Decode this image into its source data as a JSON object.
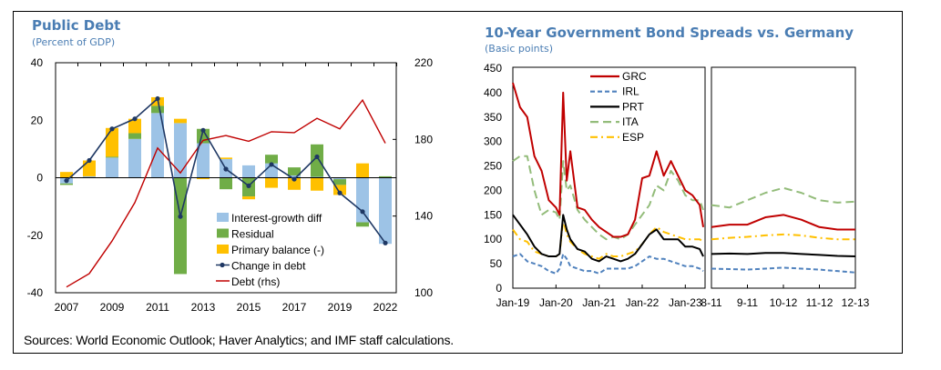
{
  "source": "Sources: World Economic Outlook; Haver Analytics; and IMF  staff calculations.",
  "chart_data": [
    {
      "type": "bar",
      "stacked": true,
      "title": "Public Debt",
      "subtitle": "(Percent of GDP)",
      "categories": [
        "2007",
        "2008",
        "2009",
        "2010",
        "2011",
        "2012",
        "2013",
        "2014",
        "2015",
        "2016",
        "2017",
        "2018",
        "2019",
        "2020",
        "2022"
      ],
      "tick_labels": [
        "2007",
        "",
        "2009",
        "",
        "2011",
        "",
        "2013",
        "",
        "2015",
        "",
        "2017",
        "",
        "2019",
        "",
        "2022"
      ],
      "ylim": [
        -40,
        40
      ],
      "yticks": [
        -40,
        -20,
        0,
        20,
        40
      ],
      "y2lim": [
        100,
        220
      ],
      "y2ticks": [
        100,
        140,
        180,
        220
      ],
      "legend_position": "bottom-center",
      "series": [
        {
          "name": "Interest-growth diff",
          "kind": "bar",
          "color": "#9dc3e6",
          "values": [
            -2,
            0.5,
            7,
            13.5,
            22.5,
            19,
            12,
            6.5,
            4.3,
            5,
            0.8,
            0.3,
            -0.5,
            -15.5,
            -23
          ]
        },
        {
          "name": "Residual",
          "kind": "bar",
          "color": "#70ad47",
          "values": [
            -0.5,
            0,
            0.3,
            2,
            2.5,
            -33.5,
            5,
            -4,
            -6.5,
            3,
            2.8,
            11.3,
            -2,
            -1.5,
            0.5
          ]
        },
        {
          "name": "Primary balance (-)",
          "kind": "bar",
          "color": "#ffc000",
          "values": [
            2,
            5.5,
            10,
            5,
            3,
            1.5,
            -0.5,
            0.5,
            -1,
            -3.5,
            -4.2,
            -4.5,
            -3.5,
            5,
            0
          ]
        },
        {
          "name": "Change in debt",
          "kind": "line-marker",
          "color": "#1f3864",
          "values": [
            -1,
            6,
            17,
            20.5,
            27.5,
            -13.5,
            16.5,
            3,
            -2.8,
            4.6,
            -0.5,
            7.3,
            -5.3,
            -11.8,
            -22.7
          ]
        },
        {
          "name": "Debt (rhs)",
          "kind": "line",
          "axis": "right",
          "color": "#c00000",
          "values": [
            103,
            110,
            127,
            147,
            175.5,
            162.5,
            179.5,
            182,
            179,
            184,
            183.5,
            191,
            185.5,
            200.5,
            178
          ]
        }
      ]
    },
    {
      "type": "line",
      "title": "10-Year Government Bond Spreads vs. Germany",
      "subtitle": "(Basic points)",
      "ylim": [
        0,
        450
      ],
      "yticks": [
        0,
        50,
        100,
        150,
        200,
        250,
        300,
        350,
        400,
        450
      ],
      "legend_position": "top-left",
      "panels": [
        {
          "x_ticks": [
            "Jan-19",
            "Jan-20",
            "Jan-21",
            "Jan-22",
            "Jan-23"
          ],
          "x_tick_months": [
            0,
            12,
            24,
            36,
            48
          ],
          "x_range_months": [
            0,
            53.5
          ],
          "x": [
            0,
            2,
            4,
            6,
            8,
            10,
            12,
            13,
            14,
            15,
            16,
            18,
            20,
            22,
            24,
            26,
            28,
            30,
            32,
            34,
            36,
            38,
            40,
            42,
            44,
            46,
            48,
            50,
            52,
            53
          ]
        },
        {
          "x_ticks": [
            "8-11",
            "9-11",
            "10-12",
            "11-12",
            "12-13"
          ],
          "x": [
            0,
            0.5,
            1,
            1.5,
            2,
            2.5,
            3,
            3.5,
            4
          ]
        }
      ],
      "series": [
        {
          "name": "GRC",
          "color": "#c00000",
          "dash": "solid",
          "panel1": [
            420,
            370,
            350,
            270,
            240,
            180,
            165,
            150,
            400,
            220,
            280,
            165,
            160,
            140,
            125,
            115,
            105,
            105,
            110,
            140,
            225,
            230,
            280,
            230,
            260,
            230,
            200,
            190,
            170,
            125
          ],
          "panel2": [
            125,
            130,
            130,
            145,
            150,
            140,
            125,
            120,
            120
          ]
        },
        {
          "name": "IRL",
          "color": "#4f81bd",
          "dash": "dashed",
          "panel1": [
            65,
            70,
            55,
            50,
            45,
            35,
            30,
            40,
            70,
            60,
            45,
            40,
            35,
            35,
            30,
            40,
            40,
            40,
            40,
            45,
            55,
            65,
            60,
            60,
            55,
            50,
            45,
            45,
            40,
            35
          ],
          "panel2": [
            40,
            39,
            38,
            40,
            42,
            40,
            38,
            35,
            32
          ]
        },
        {
          "name": "PRT",
          "color": "#000000",
          "dash": "solid",
          "panel1": [
            150,
            130,
            110,
            85,
            70,
            65,
            65,
            70,
            150,
            120,
            100,
            80,
            75,
            60,
            55,
            65,
            60,
            55,
            60,
            70,
            90,
            110,
            120,
            100,
            100,
            100,
            85,
            85,
            80,
            65
          ],
          "panel2": [
            70,
            71,
            70,
            72,
            72,
            70,
            68,
            66,
            65
          ]
        },
        {
          "name": "ITA",
          "color": "#93bc7a",
          "dash": "long-dash",
          "panel1": [
            260,
            270,
            270,
            200,
            150,
            160,
            155,
            140,
            260,
            200,
            210,
            160,
            140,
            125,
            110,
            100,
            105,
            100,
            110,
            130,
            150,
            170,
            210,
            200,
            240,
            220,
            190,
            180,
            180,
            160
          ],
          "panel2": [
            170,
            165,
            180,
            195,
            205,
            195,
            180,
            175,
            177
          ]
        },
        {
          "name": "ESP",
          "color": "#ffc000",
          "dash": "dash-dot",
          "panel1": [
            120,
            100,
            95,
            75,
            70,
            65,
            65,
            70,
            140,
            110,
            95,
            80,
            70,
            65,
            60,
            70,
            65,
            65,
            70,
            75,
            90,
            110,
            125,
            115,
            110,
            105,
            100,
            100,
            100,
            95
          ],
          "panel2": [
            100,
            103,
            105,
            108,
            110,
            108,
            103,
            100,
            100
          ]
        }
      ]
    }
  ]
}
